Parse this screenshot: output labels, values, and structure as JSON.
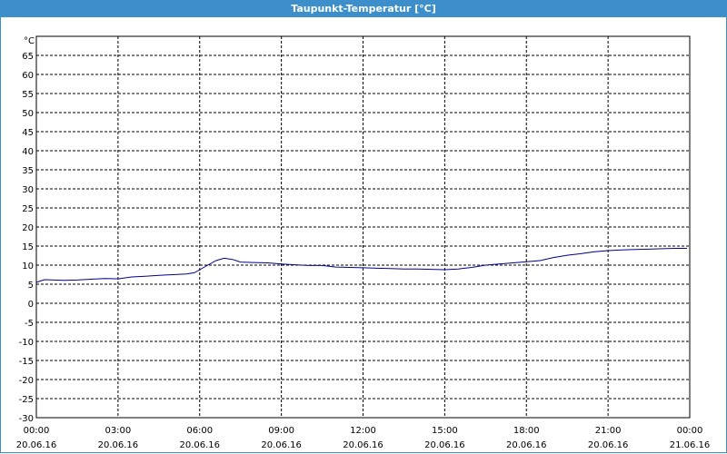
{
  "window": {
    "title": "Taupunkt-Temperatur [°C]"
  },
  "chart_data": {
    "type": "line",
    "title": "Taupunkt-Temperatur [°C]",
    "y_unit": "°C",
    "xlabel": "",
    "ylabel": "",
    "ylim": [
      -30,
      70
    ],
    "y_ticks": [
      -30,
      -25,
      -20,
      -15,
      -10,
      -5,
      0,
      5,
      10,
      15,
      20,
      25,
      30,
      35,
      40,
      45,
      50,
      55,
      60,
      65
    ],
    "xlim": [
      0,
      24
    ],
    "x_ticks": [
      {
        "h": 0,
        "time": "00:00",
        "date": "20.06.16"
      },
      {
        "h": 3,
        "time": "03:00",
        "date": "20.06.16"
      },
      {
        "h": 6,
        "time": "06:00",
        "date": "20.06.16"
      },
      {
        "h": 9,
        "time": "09:00",
        "date": "20.06.16"
      },
      {
        "h": 12,
        "time": "12:00",
        "date": "20.06.16"
      },
      {
        "h": 15,
        "time": "15:00",
        "date": "20.06.16"
      },
      {
        "h": 18,
        "time": "18:00",
        "date": "20.06.16"
      },
      {
        "h": 21,
        "time": "21:00",
        "date": "20.06.16"
      },
      {
        "h": 24,
        "time": "00:00",
        "date": "21.06.16"
      }
    ],
    "grid": true,
    "line_color": "#00008b",
    "series": [
      {
        "name": "",
        "x": [
          0,
          0.3,
          1.0,
          1.5,
          2.0,
          2.5,
          3.0,
          3.5,
          4.0,
          4.5,
          5.0,
          5.5,
          5.8,
          6.0,
          6.3,
          6.6,
          6.9,
          7.2,
          7.5,
          8.0,
          8.5,
          9.0,
          9.5,
          10.0,
          10.5,
          11.0,
          11.5,
          12.0,
          12.5,
          13.0,
          13.5,
          14.0,
          14.5,
          15.0,
          15.5,
          16.0,
          16.5,
          17.0,
          17.5,
          18.0,
          18.5,
          19.0,
          19.5,
          20.0,
          20.5,
          21.0,
          21.5,
          22.0,
          22.5,
          23.0,
          23.5,
          23.9
        ],
        "y": [
          5.5,
          6.2,
          6.0,
          6.1,
          6.3,
          6.5,
          6.4,
          6.9,
          7.1,
          7.3,
          7.5,
          7.7,
          8.0,
          8.8,
          10.0,
          11.2,
          11.8,
          11.5,
          10.8,
          10.7,
          10.6,
          10.3,
          10.1,
          9.9,
          9.9,
          9.5,
          9.4,
          9.3,
          9.2,
          9.1,
          9.0,
          9.0,
          8.9,
          8.8,
          9.0,
          9.4,
          10.0,
          10.3,
          10.6,
          10.9,
          11.2,
          12.0,
          12.6,
          13.0,
          13.5,
          13.8,
          14.0,
          14.1,
          14.2,
          14.3,
          14.4,
          14.4
        ]
      }
    ]
  }
}
